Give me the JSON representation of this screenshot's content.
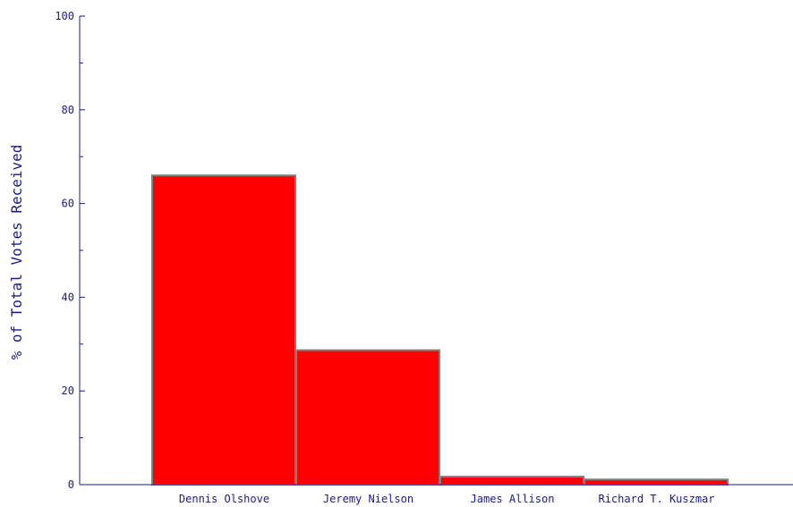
{
  "chart_data": {
    "type": "bar",
    "title": "",
    "xlabel": "",
    "ylabel": "% of Total Votes Received",
    "categories": [
      "Dennis Olshove",
      "Jeremy Nielson",
      "James Allison",
      "Richard T. Kuszmar"
    ],
    "values": [
      66,
      28.7,
      1.7,
      1.1
    ],
    "ylim": [
      0,
      100
    ],
    "yticks": [
      "0",
      "20",
      "40",
      "60",
      "80",
      "100"
    ],
    "grid": false,
    "legend": "none",
    "colors": {
      "bar_fill": "#ff0000",
      "bar_stroke": "#808080",
      "axis": "#1a1a8c",
      "text": "#1a1a8c"
    }
  }
}
